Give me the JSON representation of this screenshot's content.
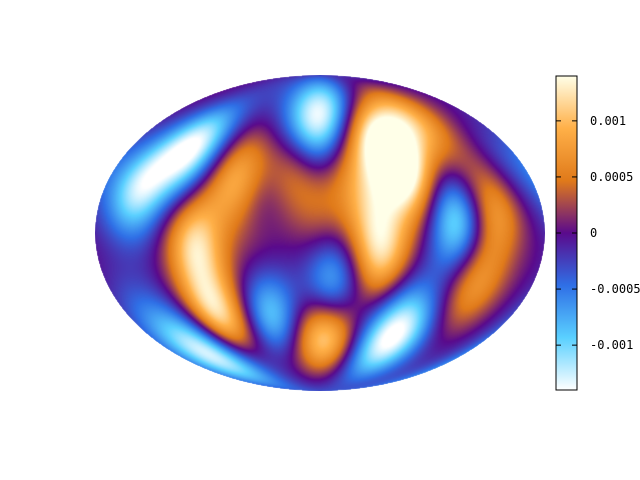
{
  "chart_data": {
    "type": "heatmap",
    "projection": "mollweide",
    "title": "",
    "xlabel": "",
    "ylabel": "",
    "grid": false,
    "colorbar": {
      "position": "right",
      "range": [
        -0.0014,
        0.0014
      ],
      "ticks": [
        {
          "value": 0.001,
          "label": "0.001"
        },
        {
          "value": 0.0005,
          "label": "0.0005"
        },
        {
          "value": 0,
          "label": "0"
        },
        {
          "value": -0.0005,
          "label": "-0.0005"
        },
        {
          "value": -0.001,
          "label": "-0.001"
        }
      ],
      "palette": [
        "#ffffff",
        "#5ad0ff",
        "#2f6fe6",
        "#5a0a8c",
        "#e07a1a",
        "#ffb048",
        "#ffffe8"
      ]
    },
    "features": [
      {
        "lon": -10,
        "lat": 45,
        "value": -0.0012
      },
      {
        "lon": 15,
        "lat": 65,
        "value": -0.001
      },
      {
        "lon": -120,
        "lat": 40,
        "value": -0.0012
      },
      {
        "lon": -150,
        "lat": 20,
        "value": -0.001
      },
      {
        "lon": 70,
        "lat": 30,
        "value": 0.0014
      },
      {
        "lon": 50,
        "lat": 50,
        "value": 0.0009
      },
      {
        "lon": 100,
        "lat": 55,
        "value": 0.0008
      },
      {
        "lon": 110,
        "lat": 5,
        "value": -0.001
      },
      {
        "lon": 140,
        "lat": 10,
        "value": 0.0007
      },
      {
        "lon": 130,
        "lat": -25,
        "value": 0.0006
      },
      {
        "lon": 50,
        "lat": -10,
        "value": 0.0009
      },
      {
        "lon": 40,
        "lat": 10,
        "value": 0.0005
      },
      {
        "lon": -50,
        "lat": 5,
        "value": 0.0007
      },
      {
        "lon": -70,
        "lat": 25,
        "value": 0.0008
      },
      {
        "lon": -100,
        "lat": -5,
        "value": 0.001
      },
      {
        "lon": -95,
        "lat": -40,
        "value": 0.0012
      },
      {
        "lon": -50,
        "lat": 10,
        "value": -0.0008
      },
      {
        "lon": -45,
        "lat": -40,
        "value": -0.0009
      },
      {
        "lon": 0,
        "lat": 10,
        "value": 0.0003
      },
      {
        "lon": 5,
        "lat": -50,
        "value": 0.0013
      },
      {
        "lon": 10,
        "lat": -25,
        "value": -0.0009
      },
      {
        "lon": 80,
        "lat": -45,
        "value": -0.001
      },
      {
        "lon": -20,
        "lat": 35,
        "value": 0.0009
      },
      {
        "lon": -160,
        "lat": -40,
        "value": -0.0003
      },
      {
        "lon": 170,
        "lat": 30,
        "value": -0.0003
      },
      {
        "lon": 25,
        "lat": 30,
        "value": 0.0003
      },
      {
        "lon": -130,
        "lat": -60,
        "value": -0.0012
      },
      {
        "lon": 60,
        "lat": -60,
        "value": -0.0006
      }
    ]
  }
}
